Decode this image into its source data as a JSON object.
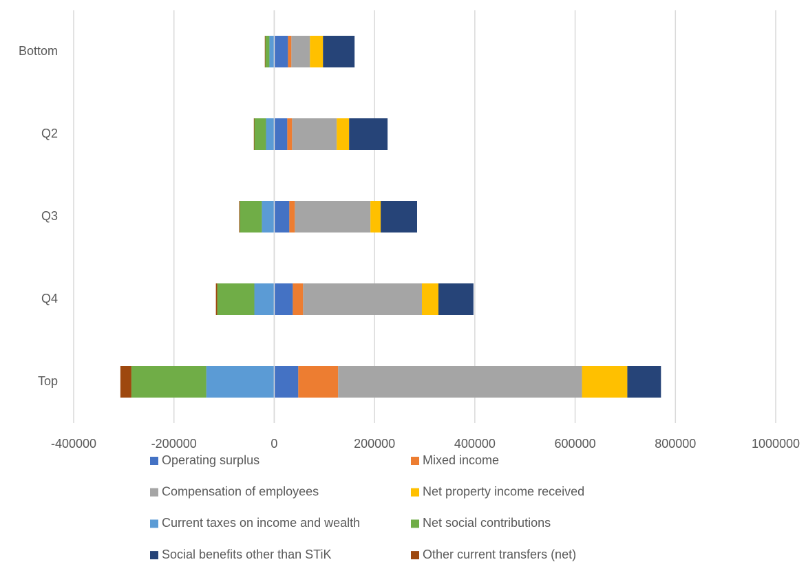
{
  "chart_data": {
    "type": "stacked-bar-horizontal",
    "categories": [
      "Bottom",
      "Q2",
      "Q3",
      "Q4",
      "Top"
    ],
    "series": [
      {
        "name": "Operating surplus",
        "color": "#4472c4",
        "values": [
          27400,
          26000,
          30100,
          37000,
          47900
        ]
      },
      {
        "name": "Mixed income",
        "color": "#ed7d31",
        "values": [
          6800,
          9600,
          11000,
          20500,
          79500
        ]
      },
      {
        "name": "Compensation of employees",
        "color": "#a5a5a5",
        "values": [
          37000,
          89000,
          150700,
          237000,
          486300
        ]
      },
      {
        "name": "Net property income received",
        "color": "#ffc000",
        "values": [
          26000,
          24700,
          20500,
          32900,
          90400
        ]
      },
      {
        "name": "Current taxes on income and wealth",
        "color": "#5b9bd5",
        "values": [
          -9600,
          -16400,
          -24700,
          -39700,
          -135600
        ]
      },
      {
        "name": "Net social contributions",
        "color": "#70ad47",
        "values": [
          -8200,
          -23300,
          -43800,
          -74000,
          -149300
        ]
      },
      {
        "name": "Social benefits other than STiK",
        "color": "#264478",
        "values": [
          63000,
          76700,
          72600,
          69900,
          67100
        ]
      },
      {
        "name": "Other current transfers (net)",
        "color": "#9e480e",
        "values": [
          -1000,
          -1000,
          -1400,
          -2700,
          -21900
        ]
      }
    ],
    "xlim": [
      -400000,
      1000000
    ],
    "xticks": [
      -400000,
      -200000,
      0,
      200000,
      400000,
      600000,
      800000,
      1000000
    ],
    "grid": true
  }
}
